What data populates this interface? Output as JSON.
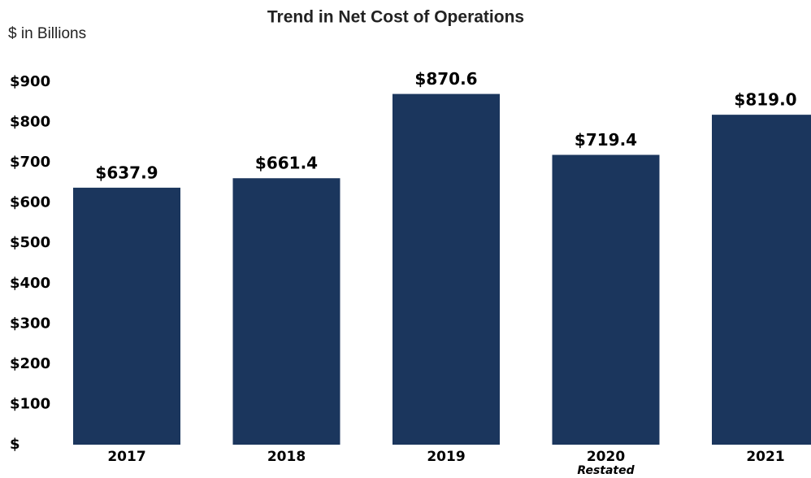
{
  "chart_data": {
    "type": "bar",
    "title": "Trend in Net Cost of Operations",
    "y_label": "$ in Billions",
    "categories": [
      "2017",
      "2018",
      "2019",
      "2020",
      "2021"
    ],
    "values": [
      637.9,
      661.4,
      870.6,
      719.4,
      819.0
    ],
    "value_labels": [
      "$637.9",
      "$661.4",
      "$870.6",
      "$719.4",
      "$819.0"
    ],
    "annotations": [
      {
        "category": "2020",
        "text": "Restated"
      }
    ],
    "color": "#1b365d",
    "ylim": [
      0,
      900
    ],
    "yticks": [
      {
        "value": 0,
        "label": "$"
      },
      {
        "value": 100,
        "label": "$100"
      },
      {
        "value": 200,
        "label": "$200"
      },
      {
        "value": 300,
        "label": "$300"
      },
      {
        "value": 400,
        "label": "$400"
      },
      {
        "value": 500,
        "label": "$500"
      },
      {
        "value": 600,
        "label": "$600"
      },
      {
        "value": 700,
        "label": "$700"
      },
      {
        "value": 800,
        "label": "$800"
      },
      {
        "value": 900,
        "label": "$900"
      }
    ],
    "grid": false
  }
}
